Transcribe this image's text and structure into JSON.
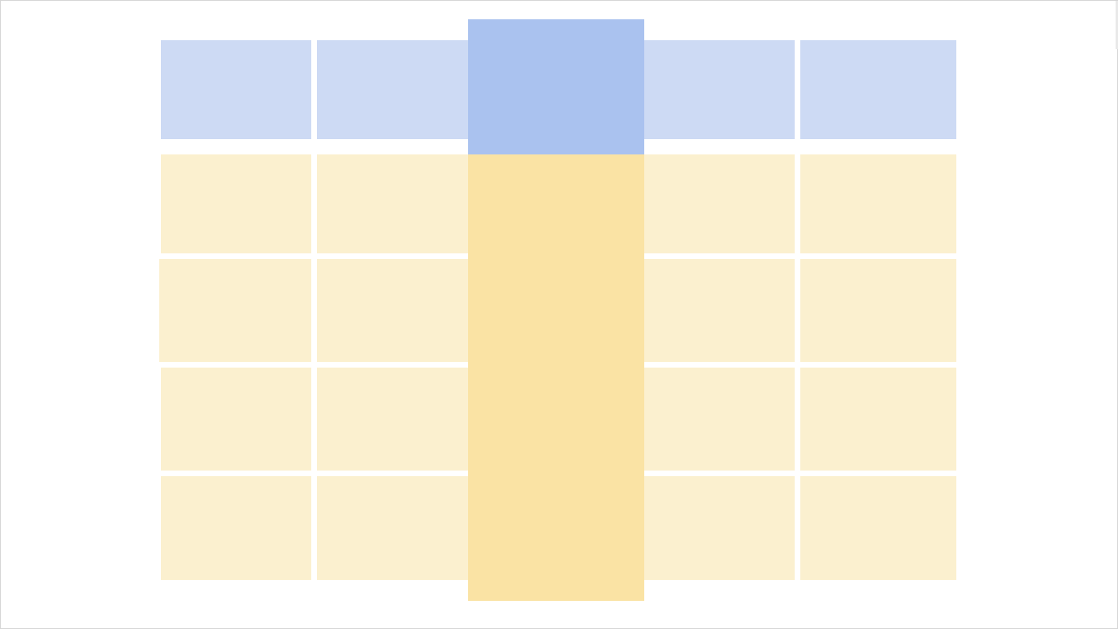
{
  "diagram": {
    "kind": "table-column-highlight",
    "columns": 5,
    "header_rows": 1,
    "body_rows": 4,
    "highlighted_column_number": 3,
    "colors": {
      "header": "#cddaf4",
      "body": "#fbf0cf",
      "highlight_header": "#aac2ef",
      "highlight_body": "#fae3a4",
      "background": "#ffffff"
    }
  }
}
